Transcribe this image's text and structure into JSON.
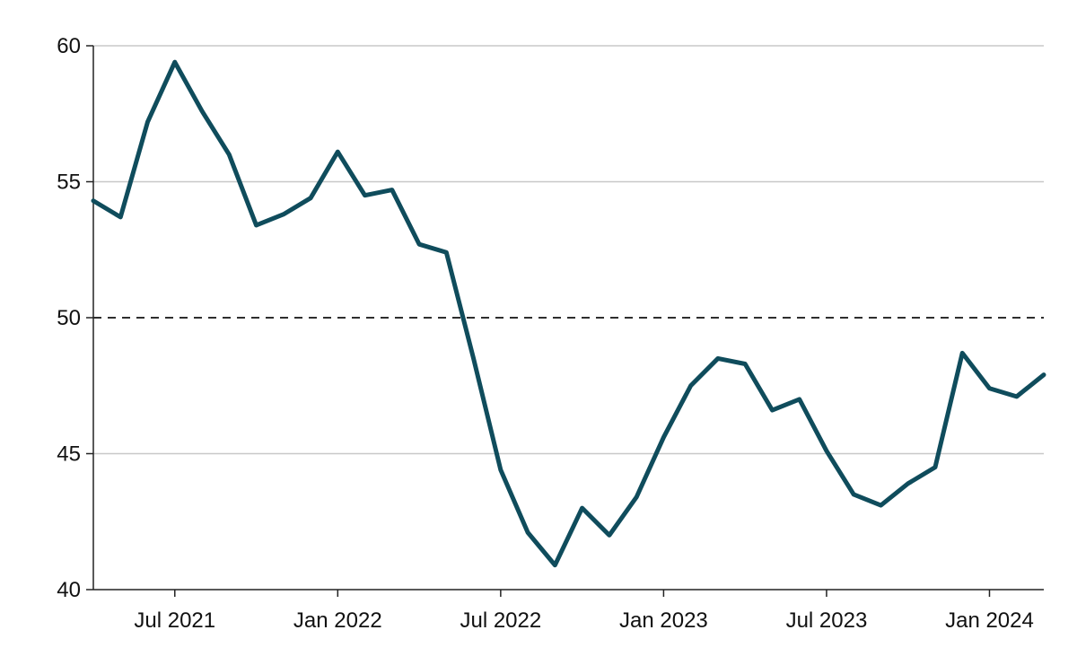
{
  "chart_data": {
    "type": "line",
    "title": "",
    "xlabel": "",
    "ylabel": "",
    "x": [
      "2021-04",
      "2021-05",
      "2021-06",
      "2021-07",
      "2021-08",
      "2021-09",
      "2021-10",
      "2021-11",
      "2021-12",
      "2022-01",
      "2022-02",
      "2022-03",
      "2022-04",
      "2022-05",
      "2022-06",
      "2022-07",
      "2022-08",
      "2022-09",
      "2022-10",
      "2022-11",
      "2022-12",
      "2023-01",
      "2023-02",
      "2023-03",
      "2023-04",
      "2023-05",
      "2023-06",
      "2023-07",
      "2023-08",
      "2023-09",
      "2023-10",
      "2023-11",
      "2023-12",
      "2024-01",
      "2024-02",
      "2024-03"
    ],
    "series": [
      {
        "values": [
          54.3,
          53.7,
          57.2,
          59.4,
          57.6,
          56.0,
          53.4,
          53.8,
          54.4,
          56.1,
          54.5,
          54.7,
          52.7,
          52.4,
          48.5,
          44.4,
          42.1,
          40.9,
          43.0,
          42.0,
          43.4,
          45.6,
          47.5,
          48.5,
          48.3,
          46.6,
          47.0,
          45.1,
          43.5,
          43.1,
          43.9,
          44.5,
          48.7,
          47.4,
          47.1,
          47.9
        ],
        "color": "#0f4c5c"
      }
    ],
    "ylim": [
      40,
      60
    ],
    "yticks": [
      40,
      45,
      50,
      55,
      60
    ],
    "yticklabels": [
      "40",
      "45",
      "50",
      "55",
      "60"
    ],
    "xticks": [
      "2021-07",
      "2022-01",
      "2022-07",
      "2023-01",
      "2023-07",
      "2024-01"
    ],
    "xticklabels": [
      "Jul 2021",
      "Jan 2022",
      "Jul 2022",
      "Jan 2023",
      "Jul 2023",
      "Jan 2024"
    ],
    "reference_line": {
      "y": 50,
      "style": "dashed"
    },
    "grid": true,
    "legend": "none"
  }
}
